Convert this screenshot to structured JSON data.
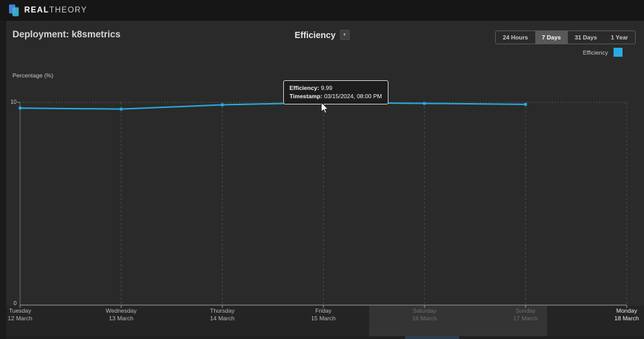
{
  "navbar": {
    "brand_bold": "REAL",
    "brand_light": "THEORY"
  },
  "header": {
    "page_title": "Deployment: k8smetrics",
    "metric_title": "Efficiency"
  },
  "icons": {
    "dropdown_caret": "▾"
  },
  "time_range": {
    "options": [
      "24 Hours",
      "7 Days",
      "31 Days",
      "1 Year"
    ],
    "selected": "7 Days"
  },
  "legend": {
    "label": "Efficiency",
    "color": "#29abe2"
  },
  "tooltip": {
    "efficiency_label": "Efficiency:",
    "efficiency_value": "9.99",
    "timestamp_label": "Timestamp:",
    "timestamp_value": "03/15/2024, 08:00 PM"
  },
  "chart_data": {
    "type": "line",
    "title": "Efficiency",
    "ylabel": "Percentage (%)",
    "ylim": [
      0,
      10
    ],
    "yticks": [
      "0",
      "10"
    ],
    "grid": {
      "horizontal": "dotted line at y=10",
      "vertical": "dashed line at each day"
    },
    "legend_position": "top-right",
    "categories": [
      {
        "day": "Tuesday",
        "date": "12 March",
        "muted": false,
        "bright": false
      },
      {
        "day": "Wednesday",
        "date": "13 March",
        "muted": false,
        "bright": false
      },
      {
        "day": "Thursday",
        "date": "14 March",
        "muted": false,
        "bright": false
      },
      {
        "day": "Friday",
        "date": "15 March",
        "muted": false,
        "bright": false
      },
      {
        "day": "Saturday",
        "date": "16 March",
        "muted": true,
        "bright": false
      },
      {
        "day": "Sunday",
        "date": "17 March",
        "muted": true,
        "bright": false
      },
      {
        "day": "Monday",
        "date": "18 March",
        "muted": false,
        "bright": true
      }
    ],
    "series": [
      {
        "name": "Efficiency",
        "color": "#29abe2",
        "values": [
          9.72,
          9.67,
          9.88,
          9.99,
          9.95,
          9.9
        ]
      }
    ],
    "highlighted_point": {
      "index": 3,
      "value": 9.99,
      "timestamp": "03/15/2024, 08:00 PM"
    }
  }
}
